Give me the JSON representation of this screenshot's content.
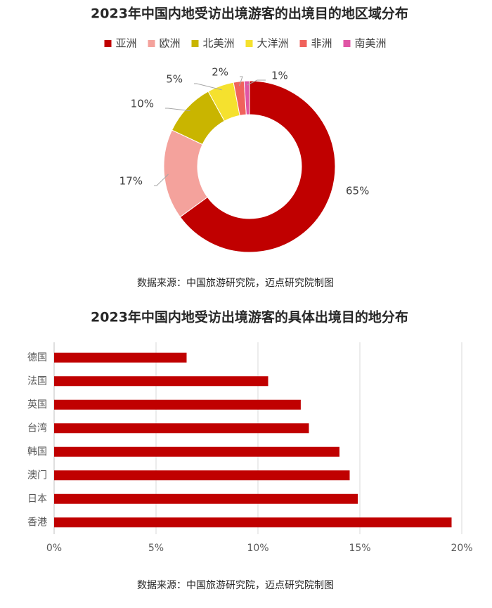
{
  "chart_data": [
    {
      "type": "donut",
      "title": "2023年中国内地受访出境游客的出境目的地区域分布",
      "categories": [
        "亚洲",
        "欧洲",
        "北美洲",
        "大洋洲",
        "非洲",
        "南美洲"
      ],
      "values": [
        65,
        17,
        10,
        5,
        2,
        1
      ],
      "value_labels": [
        "65%",
        "17%",
        "10%",
        "5%",
        "2%",
        "1%"
      ],
      "colors": [
        "#c00000",
        "#f4a29c",
        "#c9b500",
        "#f5e12e",
        "#f0625c",
        "#e055a5"
      ],
      "legend": "top",
      "source": "数据来源：中国旅游研究院，迈点研究院制图"
    },
    {
      "type": "bar",
      "orientation": "horizontal",
      "title": "2023年中国内地受访出境游客的具体出境目的地分布",
      "categories": [
        "德国",
        "法国",
        "英国",
        "台湾",
        "韩国",
        "澳门",
        "日本",
        "香港"
      ],
      "values": [
        6.5,
        10.5,
        12.1,
        12.5,
        14.0,
        14.5,
        14.9,
        19.5
      ],
      "color": "#c00000",
      "xlim": [
        0,
        20
      ],
      "xticks": [
        {
          "value": 0,
          "label": "0%"
        },
        {
          "value": 5,
          "label": "5%"
        },
        {
          "value": 10,
          "label": "10%"
        },
        {
          "value": 15,
          "label": "15%"
        },
        {
          "value": 20,
          "label": "20%"
        }
      ],
      "grid": true,
      "source": "数据来源：中国旅游研究院，迈点研究院制图"
    }
  ]
}
